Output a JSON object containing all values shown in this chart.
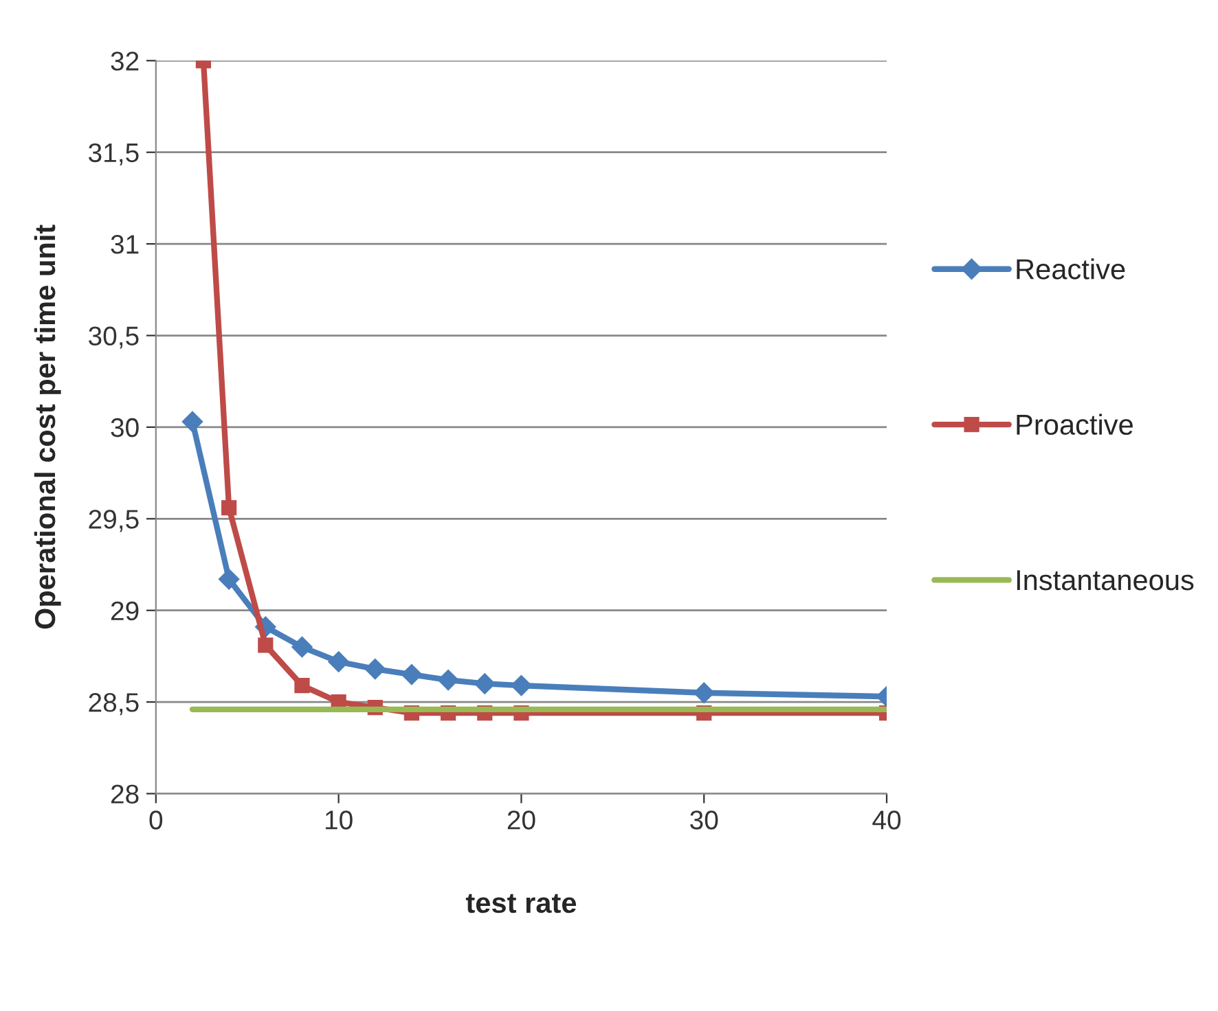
{
  "chart_data": {
    "type": "line",
    "xlabel": "test rate",
    "ylabel": "Operational cost per time unit",
    "xlim": [
      0,
      40
    ],
    "xticks": [
      0,
      10,
      20,
      30,
      40
    ],
    "ylim": [
      28,
      32
    ],
    "yticks": [
      28,
      {
        "value": 28.5,
        "label": "28,5"
      },
      29,
      {
        "value": 29.5,
        "label": "29,5"
      },
      30,
      {
        "value": 30.5,
        "label": "30,5"
      },
      31,
      {
        "value": 31.5,
        "label": "31,5"
      },
      32
    ],
    "grid": "y",
    "legend": "right",
    "series": [
      {
        "name": "Reactive",
        "color": "#4a7ebb",
        "marker": "diamond",
        "x": [
          2,
          4,
          6,
          8,
          10,
          12,
          14,
          16,
          18,
          20,
          30,
          40
        ],
        "values": [
          30.03,
          29.17,
          28.91,
          28.8,
          28.72,
          28.68,
          28.65,
          28.62,
          28.6,
          28.59,
          28.55,
          28.53
        ]
      },
      {
        "name": "Proactive",
        "color": "#be4b48",
        "marker": "square",
        "x": [
          2.6,
          4,
          6,
          8,
          10,
          12,
          14,
          16,
          18,
          20,
          30,
          40
        ],
        "values": [
          32,
          29.56,
          28.81,
          28.59,
          28.5,
          28.47,
          28.44,
          28.44,
          28.44,
          28.44,
          28.44,
          28.44
        ]
      },
      {
        "name": "Instantaneous",
        "color": "#98b954",
        "marker": "none",
        "x": [
          2,
          40
        ],
        "values": [
          28.46,
          28.46
        ]
      }
    ]
  }
}
